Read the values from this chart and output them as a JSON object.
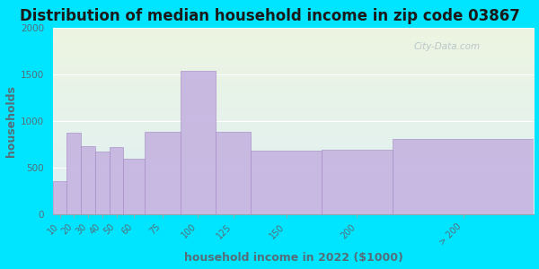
{
  "title": "Distribution of median household income in zip code 03867",
  "xlabel": "household income in 2022 ($1000)",
  "ylabel": "households",
  "bar_labels": [
    "10",
    "20",
    "30",
    "40",
    "50",
    "60",
    "75",
    "100",
    "125",
    "150",
    "200",
    "> 200"
  ],
  "bar_values": [
    350,
    870,
    730,
    670,
    720,
    590,
    880,
    1530,
    880,
    680,
    690,
    800
  ],
  "bar_widths": [
    10,
    10,
    10,
    10,
    10,
    15,
    25,
    25,
    25,
    50,
    50,
    100
  ],
  "bar_lefts": [
    0,
    10,
    20,
    30,
    40,
    50,
    65,
    90,
    115,
    140,
    190,
    240
  ],
  "bar_color": "#c5b3e0",
  "bar_edge_color": "#a98cc8",
  "ylim": [
    0,
    2000
  ],
  "yticks": [
    0,
    500,
    1000,
    1500,
    2000
  ],
  "bg_outer": "#00e5ff",
  "bg_inner_top": "#edf5e1",
  "bg_inner_bottom": "#dff0f5",
  "title_fontsize": 12,
  "axis_label_fontsize": 9,
  "watermark_text": "City-Data.com",
  "watermark_color": "#b0bec5",
  "tick_label_color": "#546e7a",
  "title_color": "#1a1a1a"
}
